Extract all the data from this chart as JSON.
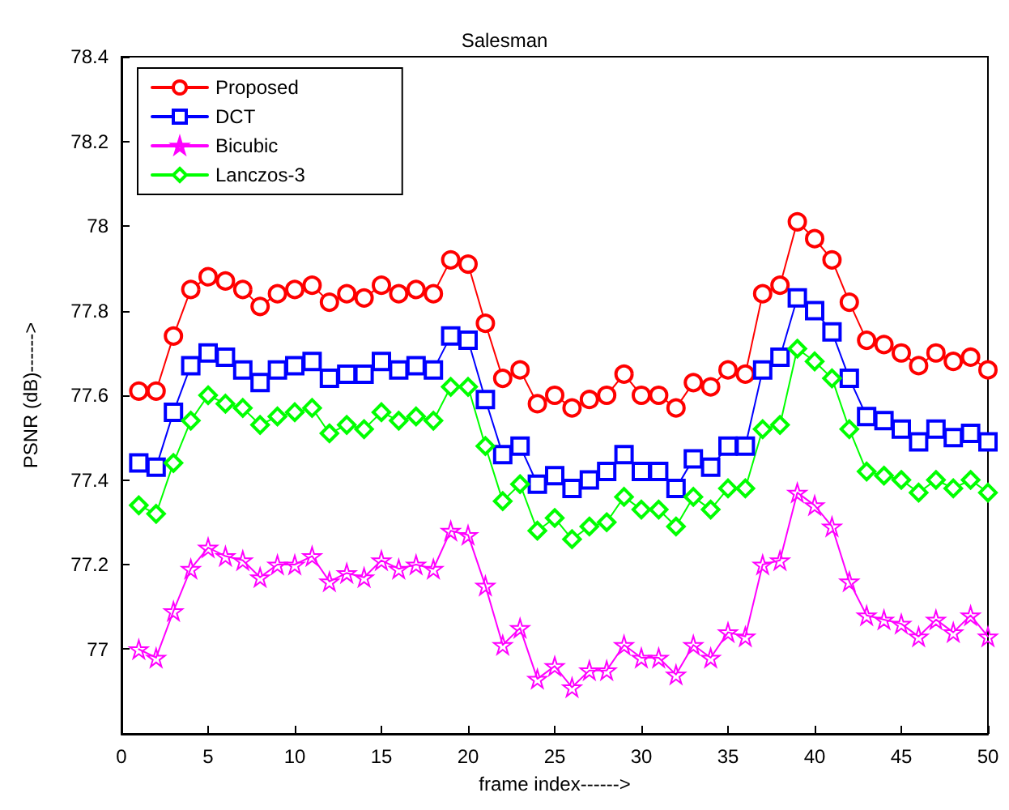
{
  "chart_data": {
    "type": "line",
    "title": "Salesman",
    "xlabel": "frame index------>",
    "ylabel": "PSNR (dB)------>",
    "x": [
      1,
      2,
      3,
      4,
      5,
      6,
      7,
      8,
      9,
      10,
      11,
      12,
      13,
      14,
      15,
      16,
      17,
      18,
      19,
      20,
      21,
      22,
      23,
      24,
      25,
      26,
      27,
      28,
      29,
      30,
      31,
      32,
      33,
      34,
      35,
      36,
      37,
      38,
      39,
      40,
      41,
      42,
      43,
      44,
      45,
      46,
      47,
      48,
      49,
      50
    ],
    "series": [
      {
        "name": "Proposed",
        "color": "#ff0000",
        "marker": "circle",
        "values": [
          77.61,
          77.61,
          77.74,
          77.85,
          77.88,
          77.87,
          77.85,
          77.81,
          77.84,
          77.85,
          77.86,
          77.82,
          77.84,
          77.83,
          77.86,
          77.84,
          77.85,
          77.84,
          77.92,
          77.91,
          77.77,
          77.64,
          77.66,
          77.58,
          77.6,
          77.57,
          77.59,
          77.6,
          77.65,
          77.6,
          77.6,
          77.57,
          77.63,
          77.62,
          77.66,
          77.65,
          77.84,
          77.86,
          78.01,
          77.97,
          77.92,
          77.82,
          77.73,
          77.72,
          77.7,
          77.67,
          77.7,
          77.68,
          77.69,
          77.66
        ]
      },
      {
        "name": "DCT",
        "color": "#0000ff",
        "marker": "square",
        "values": [
          77.44,
          77.43,
          77.56,
          77.67,
          77.7,
          77.69,
          77.66,
          77.63,
          77.66,
          77.67,
          77.68,
          77.64,
          77.65,
          77.65,
          77.68,
          77.66,
          77.67,
          77.66,
          77.74,
          77.73,
          77.59,
          77.46,
          77.48,
          77.39,
          77.41,
          77.38,
          77.4,
          77.42,
          77.46,
          77.42,
          77.42,
          77.38,
          77.45,
          77.43,
          77.48,
          77.48,
          77.66,
          77.69,
          77.83,
          77.8,
          77.75,
          77.64,
          77.55,
          77.54,
          77.52,
          77.49,
          77.52,
          77.5,
          77.51,
          77.49
        ]
      },
      {
        "name": "Bicubic",
        "color": "#ff00ff",
        "marker": "star",
        "values": [
          77.0,
          76.98,
          77.09,
          77.19,
          77.24,
          77.22,
          77.21,
          77.17,
          77.2,
          77.2,
          77.22,
          77.16,
          77.18,
          77.17,
          77.21,
          77.19,
          77.2,
          77.19,
          77.28,
          77.27,
          77.15,
          77.01,
          77.05,
          76.93,
          76.96,
          76.91,
          76.95,
          76.95,
          77.01,
          76.98,
          76.98,
          76.94,
          77.01,
          76.98,
          77.04,
          77.03,
          77.2,
          77.21,
          77.37,
          77.34,
          77.29,
          77.16,
          77.08,
          77.07,
          77.06,
          77.03,
          77.07,
          77.04,
          77.08,
          77.03
        ]
      },
      {
        "name": "Lanczos-3",
        "color": "#00ff00",
        "marker": "diamond",
        "values": [
          77.34,
          77.32,
          77.44,
          77.54,
          77.6,
          77.58,
          77.57,
          77.53,
          77.55,
          77.56,
          77.57,
          77.51,
          77.53,
          77.52,
          77.56,
          77.54,
          77.55,
          77.54,
          77.62,
          77.62,
          77.48,
          77.35,
          77.39,
          77.28,
          77.31,
          77.26,
          77.29,
          77.3,
          77.36,
          77.33,
          77.33,
          77.29,
          77.36,
          77.33,
          77.38,
          77.38,
          77.52,
          77.53,
          77.71,
          77.68,
          77.64,
          77.52,
          77.42,
          77.41,
          77.4,
          77.37,
          77.4,
          77.38,
          77.4,
          77.37
        ]
      }
    ],
    "xlim": [
      0,
      50
    ],
    "xticks": [
      0,
      5,
      10,
      15,
      20,
      25,
      30,
      35,
      40,
      45,
      50
    ],
    "ylim": [
      76.8,
      78.4
    ],
    "yticks": [
      {
        "value": 76.8,
        "label": null
      },
      77,
      77.2,
      77.4,
      77.6,
      77.8,
      78,
      78.2,
      78.4
    ],
    "legend": "top left",
    "grid": false,
    "line_style": "solid"
  }
}
